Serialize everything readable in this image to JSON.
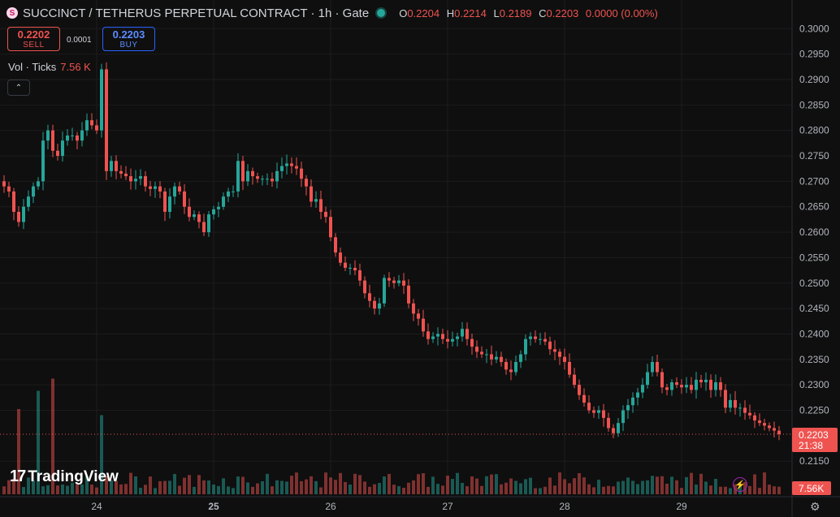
{
  "header": {
    "logo_letter": "S",
    "title": "SUCCINCT / TETHERUS PERPETUAL CONTRACT · 1h · Gate",
    "ohlc": {
      "o_label": "O",
      "o": "0.2204",
      "h_label": "H",
      "h": "0.2214",
      "l_label": "L",
      "l": "0.2189",
      "c_label": "C",
      "c": "0.2203",
      "change": "0.0000 (0.00%)"
    }
  },
  "trade": {
    "sell_price": "0.2202",
    "sell_label": "SELL",
    "spread": "0.0001",
    "buy_price": "0.2203",
    "buy_label": "BUY"
  },
  "volume": {
    "label": "Vol · Ticks",
    "value": "7.56 K"
  },
  "collapse_icon": "chevron-up-icon",
  "branding": {
    "name": "TradingView"
  },
  "colors": {
    "up": "#26a69a",
    "down": "#ef5350",
    "background": "#0f0f0f",
    "grid": "#1c1c1c"
  },
  "chart_data": {
    "type": "candlestick",
    "timeframe": "1h",
    "x_ticks": [
      {
        "label": "24",
        "index": 19,
        "bold": false
      },
      {
        "label": "25",
        "index": 43,
        "bold": true
      },
      {
        "label": "26",
        "index": 67,
        "bold": false
      },
      {
        "label": "27",
        "index": 91,
        "bold": false
      },
      {
        "label": "28",
        "index": 115,
        "bold": false
      },
      {
        "label": "29",
        "index": 139,
        "bold": false
      }
    ],
    "y_ticks": [
      "0.3000",
      "0.2950",
      "0.2900",
      "0.2850",
      "0.2800",
      "0.2750",
      "0.2700",
      "0.2650",
      "0.2600",
      "0.2550",
      "0.2500",
      "0.2450",
      "0.2400",
      "0.2350",
      "0.2300",
      "0.2250",
      "0.2150"
    ],
    "ylim": [
      0.2128,
      0.3018
    ],
    "last_price": "0.2203",
    "countdown": "21:38",
    "volume_last_label": "7.56K",
    "closes": [
      0.269,
      0.268,
      0.264,
      0.262,
      0.265,
      0.267,
      0.269,
      0.27,
      0.278,
      0.28,
      0.276,
      0.275,
      0.278,
      0.279,
      0.279,
      0.278,
      0.28,
      0.282,
      0.281,
      0.28,
      0.292,
      0.272,
      0.274,
      0.272,
      0.2715,
      0.271,
      0.27,
      0.2705,
      0.271,
      0.269,
      0.2685,
      0.269,
      0.268,
      0.264,
      0.267,
      0.269,
      0.268,
      0.265,
      0.263,
      0.2635,
      0.262,
      0.26,
      0.2635,
      0.2645,
      0.265,
      0.267,
      0.268,
      0.268,
      0.274,
      0.27,
      0.272,
      0.271,
      0.2705,
      0.2705,
      0.2705,
      0.27,
      0.272,
      0.273,
      0.2735,
      0.273,
      0.2725,
      0.2705,
      0.269,
      0.266,
      0.2665,
      0.264,
      0.263,
      0.259,
      0.256,
      0.254,
      0.253,
      0.253,
      0.2525,
      0.2505,
      0.248,
      0.2465,
      0.245,
      0.246,
      0.251,
      0.2505,
      0.25,
      0.2505,
      0.2495,
      0.246,
      0.244,
      0.243,
      0.2405,
      0.239,
      0.2395,
      0.24,
      0.239,
      0.2385,
      0.239,
      0.2395,
      0.241,
      0.239,
      0.2375,
      0.2365,
      0.236,
      0.236,
      0.235,
      0.2355,
      0.2345,
      0.233,
      0.2325,
      0.2345,
      0.236,
      0.239,
      0.2395,
      0.239,
      0.239,
      0.2385,
      0.237,
      0.2365,
      0.2355,
      0.2345,
      0.232,
      0.23,
      0.228,
      0.2265,
      0.225,
      0.2245,
      0.225,
      0.2235,
      0.2215,
      0.2205,
      0.2225,
      0.225,
      0.226,
      0.2275,
      0.2285,
      0.23,
      0.2325,
      0.2345,
      0.2325,
      0.2295,
      0.229,
      0.2305,
      0.23,
      0.2295,
      0.23,
      0.229,
      0.231,
      0.2305,
      0.231,
      0.229,
      0.2305,
      0.229,
      0.2255,
      0.227,
      0.2255,
      0.2255,
      0.2245,
      0.224,
      0.223,
      0.2225,
      0.222,
      0.2215,
      0.221,
      0.2203
    ],
    "volume_peaks": [
      {
        "index": 3,
        "value": 0.7
      },
      {
        "index": 7,
        "value": 0.85
      },
      {
        "index": 10,
        "value": 0.95
      },
      {
        "index": 20,
        "value": 0.65
      },
      {
        "index": 21,
        "value": 0.15
      }
    ]
  }
}
